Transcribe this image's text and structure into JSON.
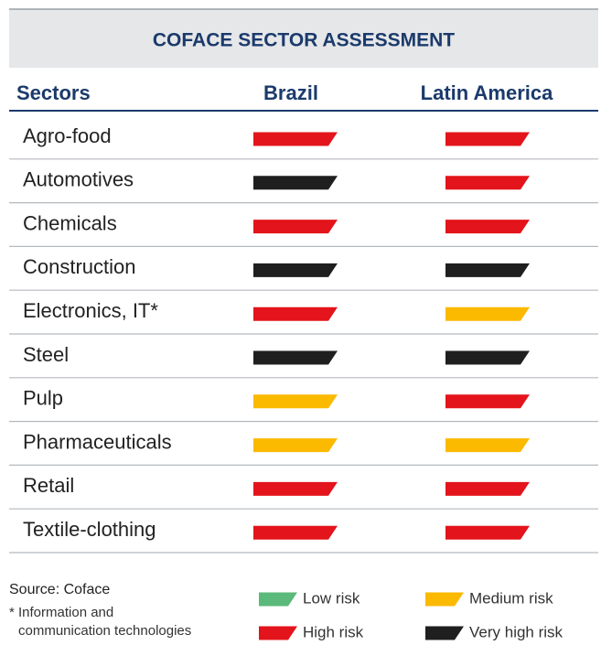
{
  "title": "COFACE SECTOR ASSESSMENT",
  "table": {
    "headers": [
      "Sectors",
      "Brazil",
      "Latin America"
    ],
    "rows": [
      [
        "Agro-food",
        "High risk",
        "High risk"
      ],
      [
        "Automotives",
        "Very high risk",
        "High risk"
      ],
      [
        "Chemicals",
        "High risk",
        "High risk"
      ],
      [
        "Construction",
        "Very high risk",
        "Very high risk"
      ],
      [
        "Electronics, IT*",
        "High risk",
        "Medium risk"
      ],
      [
        "Steel",
        "Very high risk",
        "Very high risk"
      ],
      [
        "Pulp",
        "Medium risk",
        "High risk"
      ],
      [
        "Pharmaceuticals",
        "Medium risk",
        "Medium risk"
      ],
      [
        "Retail",
        "High risk",
        "High risk"
      ],
      [
        "Textile-clothing",
        "High risk",
        "High risk"
      ]
    ]
  },
  "source": "Source: Coface",
  "footnote": [
    "* Information and",
    "communication technologies"
  ],
  "legend": [
    {
      "label": "Low risk",
      "color": "#5bb97b"
    },
    {
      "label": "Medium risk",
      "color": "#fbb900"
    },
    {
      "label": "High risk",
      "color": "#e3141b"
    },
    {
      "label": "Very high risk",
      "color": "#1f1f1f"
    }
  ]
}
